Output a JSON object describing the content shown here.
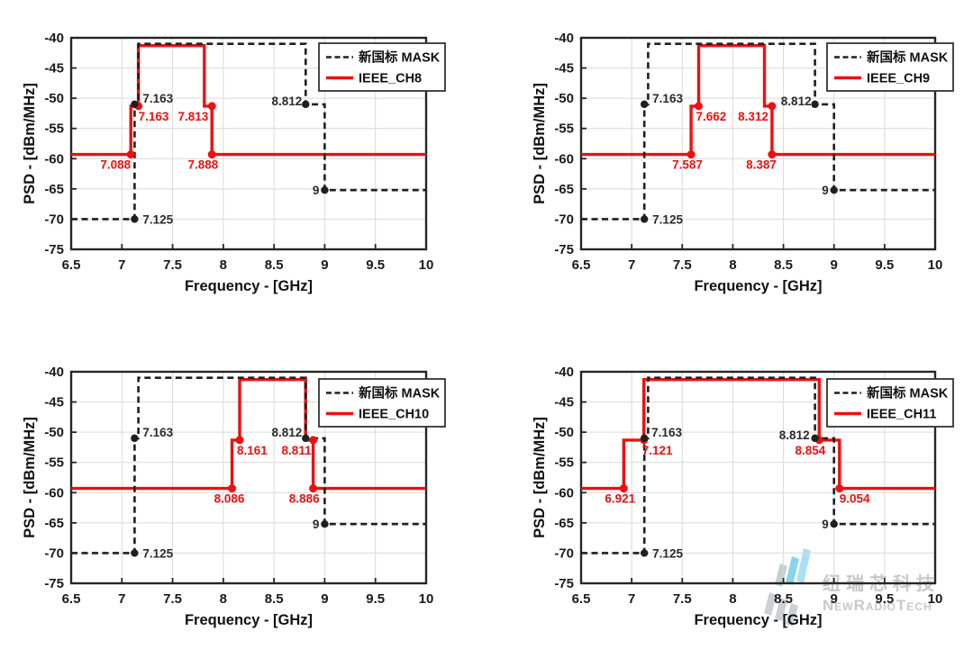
{
  "colors": {
    "mask_line": "#1f1f1f",
    "ieee_line": "#ee1010",
    "ieee_label": "#ee1010",
    "grid": "#d9d9d9",
    "frame": "#262626",
    "legend_border": "#333333",
    "watermark_text": "#c6c6c6",
    "watermark_cyan": "#7fd2ec",
    "watermark_cyan_light": "#a5e0f3",
    "watermark_gray": "#c9ced2",
    "watermark_gray_blue": "#c2ccd1"
  },
  "axes": {
    "x_label": "Frequency - [GHz]",
    "y_label": "PSD - [dBm/MHz]",
    "x_range": [
      6.5,
      10
    ],
    "y_range": [
      -75,
      -40
    ],
    "x_ticks": [
      "6.5",
      "7",
      "7.5",
      "8",
      "8.5",
      "9",
      "9.5",
      "10"
    ],
    "y_ticks": [
      "-40",
      "-45",
      "-50",
      "-55",
      "-60",
      "-65",
      "-70",
      "-75"
    ],
    "grid": true,
    "legend_position": "top-right"
  },
  "watermark": {
    "company_cn": "纽瑞芯科技",
    "company_en": "NewRadioTech"
  },
  "chart_data": [
    {
      "type": "line",
      "name": "IEEE_CH8",
      "series": [
        {
          "name": "新国标 MASK",
          "style": "dashed",
          "color_key": "mask_line",
          "points": [
            [
              6.5,
              -70
            ],
            [
              7.125,
              -70
            ],
            [
              7.125,
              -51
            ],
            [
              7.163,
              -51
            ],
            [
              7.163,
              -41
            ],
            [
              8.812,
              -41
            ],
            [
              8.812,
              -51
            ],
            [
              9,
              -51
            ],
            [
              9,
              -65.2
            ],
            [
              10,
              -65.2
            ]
          ],
          "markers": [
            {
              "label": "7.163",
              "x": 7.125,
              "y": -51,
              "anchor": "start",
              "dx": 9,
              "dy": -2
            },
            {
              "label": "8.812",
              "x": 8.812,
              "y": -51,
              "anchor": "end",
              "dx": -4,
              "dy": 1
            },
            {
              "label": "9",
              "x": 9,
              "y": -65.2,
              "anchor": "end",
              "dx": -6,
              "dy": 5
            },
            {
              "label": "7.125",
              "x": 7.125,
              "y": -70,
              "anchor": "start",
              "dx": 9,
              "dy": 5
            }
          ]
        },
        {
          "name": "IEEE_CH8",
          "style": "solid",
          "color_key": "ieee_line",
          "points": [
            [
              6.5,
              -59.3
            ],
            [
              7.088,
              -59.3
            ],
            [
              7.088,
              -51.3
            ],
            [
              7.163,
              -51.3
            ],
            [
              7.163,
              -41.3
            ],
            [
              7.813,
              -41.3
            ],
            [
              7.813,
              -51.3
            ],
            [
              7.888,
              -51.3
            ],
            [
              7.888,
              -59.3
            ],
            [
              10,
              -59.3
            ]
          ],
          "markers": [
            {
              "label": "7.088",
              "x": 7.088,
              "y": -59.3,
              "anchor": "end",
              "dx": 0,
              "dy": 16
            },
            {
              "label": "7.163",
              "x": 7.163,
              "y": -51.3,
              "anchor": "start",
              "dx": 0,
              "dy": 16
            },
            {
              "label": "7.813",
              "x": 7.888,
              "y": -51.3,
              "anchor": "end",
              "dx": -4,
              "dy": 16
            },
            {
              "label": "7.888",
              "x": 7.888,
              "y": -59.3,
              "anchor": "end",
              "dx": 7,
              "dy": 16
            }
          ]
        }
      ]
    },
    {
      "type": "line",
      "name": "IEEE_CH9",
      "series": [
        {
          "name": "新国标 MASK",
          "style": "dashed",
          "color_key": "mask_line",
          "points": [
            [
              6.5,
              -70
            ],
            [
              7.125,
              -70
            ],
            [
              7.125,
              -51
            ],
            [
              7.163,
              -51
            ],
            [
              7.163,
              -41
            ],
            [
              8.812,
              -41
            ],
            [
              8.812,
              -51
            ],
            [
              9,
              -51
            ],
            [
              9,
              -65.2
            ],
            [
              10,
              -65.2
            ]
          ],
          "markers": [
            {
              "label": "7.163",
              "x": 7.125,
              "y": -51,
              "anchor": "start",
              "dx": 9,
              "dy": -2
            },
            {
              "label": "8.812",
              "x": 8.812,
              "y": -51,
              "anchor": "end",
              "dx": -4,
              "dy": 1
            },
            {
              "label": "9",
              "x": 9,
              "y": -65.2,
              "anchor": "end",
              "dx": -6,
              "dy": 5
            },
            {
              "label": "7.125",
              "x": 7.125,
              "y": -70,
              "anchor": "start",
              "dx": 9,
              "dy": 5
            }
          ]
        },
        {
          "name": "IEEE_CH9",
          "style": "solid",
          "color_key": "ieee_line",
          "points": [
            [
              6.5,
              -59.3
            ],
            [
              7.587,
              -59.3
            ],
            [
              7.587,
              -51.3
            ],
            [
              7.662,
              -51.3
            ],
            [
              7.662,
              -41.3
            ],
            [
              8.312,
              -41.3
            ],
            [
              8.312,
              -51.3
            ],
            [
              8.387,
              -51.3
            ],
            [
              8.387,
              -59.3
            ],
            [
              10,
              -59.3
            ]
          ],
          "markers": [
            {
              "label": "7.587",
              "x": 7.587,
              "y": -59.3,
              "anchor": "middle",
              "dx": -4,
              "dy": 16
            },
            {
              "label": "7.662",
              "x": 7.662,
              "y": -51.3,
              "anchor": "start",
              "dx": -3,
              "dy": 16
            },
            {
              "label": "8.312",
              "x": 8.387,
              "y": -51.3,
              "anchor": "end",
              "dx": -4,
              "dy": 16
            },
            {
              "label": "8.387",
              "x": 8.387,
              "y": -59.3,
              "anchor": "end",
              "dx": 5,
              "dy": 16
            }
          ]
        }
      ]
    },
    {
      "type": "line",
      "name": "IEEE_CH10",
      "series": [
        {
          "name": "新国标 MASK",
          "style": "dashed",
          "color_key": "mask_line",
          "points": [
            [
              6.5,
              -70
            ],
            [
              7.125,
              -70
            ],
            [
              7.125,
              -51
            ],
            [
              7.163,
              -51
            ],
            [
              7.163,
              -41
            ],
            [
              8.812,
              -41
            ],
            [
              8.812,
              -51
            ],
            [
              9,
              -51
            ],
            [
              9,
              -65.2
            ],
            [
              10,
              -65.2
            ]
          ],
          "markers": [
            {
              "label": "7.163",
              "x": 7.125,
              "y": -51,
              "anchor": "start",
              "dx": 9,
              "dy": -2
            },
            {
              "label": "8.812",
              "x": 8.812,
              "y": -51,
              "anchor": "end",
              "dx": -4,
              "dy": -2
            },
            {
              "label": "9",
              "x": 9,
              "y": -65.2,
              "anchor": "end",
              "dx": -6,
              "dy": 5
            },
            {
              "label": "7.125",
              "x": 7.125,
              "y": -70,
              "anchor": "start",
              "dx": 9,
              "dy": 5
            }
          ]
        },
        {
          "name": "IEEE_CH10",
          "style": "solid",
          "color_key": "ieee_line",
          "points": [
            [
              6.5,
              -59.3
            ],
            [
              8.086,
              -59.3
            ],
            [
              8.086,
              -51.3
            ],
            [
              8.161,
              -51.3
            ],
            [
              8.161,
              -41.3
            ],
            [
              8.811,
              -41.3
            ],
            [
              8.811,
              -51.3
            ],
            [
              8.886,
              -51.3
            ],
            [
              8.886,
              -59.3
            ],
            [
              10,
              -59.3
            ]
          ],
          "markers": [
            {
              "label": "8.086",
              "x": 8.086,
              "y": -59.3,
              "anchor": "middle",
              "dx": -3,
              "dy": 16
            },
            {
              "label": "8.161",
              "x": 8.161,
              "y": -51.3,
              "anchor": "start",
              "dx": -3,
              "dy": 16
            },
            {
              "label": "8.811",
              "x": 8.886,
              "y": -51.3,
              "anchor": "end",
              "dx": -2,
              "dy": 16
            },
            {
              "label": "8.886",
              "x": 8.886,
              "y": -59.3,
              "anchor": "end",
              "dx": 7,
              "dy": 16
            }
          ]
        }
      ]
    },
    {
      "type": "line",
      "name": "IEEE_CH11",
      "series": [
        {
          "name": "新国标 MASK",
          "style": "dashed",
          "color_key": "mask_line",
          "points": [
            [
              6.5,
              -70
            ],
            [
              7.125,
              -70
            ],
            [
              7.125,
              -51
            ],
            [
              7.163,
              -51
            ],
            [
              7.163,
              -41
            ],
            [
              8.812,
              -41
            ],
            [
              8.812,
              -51
            ],
            [
              9,
              -51
            ],
            [
              9,
              -65.2
            ],
            [
              10,
              -65.2
            ]
          ],
          "markers": [
            {
              "label": "7.163",
              "x": 7.125,
              "y": -51,
              "anchor": "start",
              "dx": 8,
              "dy": -2
            },
            {
              "label": "8.812",
              "x": 8.812,
              "y": -51,
              "anchor": "end",
              "dx": -6,
              "dy": 1
            },
            {
              "label": "9",
              "x": 9,
              "y": -65.2,
              "anchor": "end",
              "dx": -6,
              "dy": 5
            },
            {
              "label": "7.125",
              "x": 7.125,
              "y": -70,
              "anchor": "start",
              "dx": 9,
              "dy": 5
            }
          ]
        },
        {
          "name": "IEEE_CH11",
          "style": "solid",
          "color_key": "ieee_line",
          "points": [
            [
              6.5,
              -59.3
            ],
            [
              6.921,
              -59.3
            ],
            [
              6.921,
              -51.3
            ],
            [
              7.121,
              -51.3
            ],
            [
              7.121,
              -41.3
            ],
            [
              8.854,
              -41.3
            ],
            [
              8.854,
              -51.3
            ],
            [
              9.054,
              -51.3
            ],
            [
              9.054,
              -59.3
            ],
            [
              10,
              -59.3
            ]
          ],
          "markers": [
            {
              "label": "6.921",
              "x": 6.921,
              "y": -59.3,
              "anchor": "middle",
              "dx": -4,
              "dy": 16
            },
            {
              "label": "7.121",
              "x": 7.121,
              "y": -51.3,
              "anchor": "start",
              "dx": -2,
              "dy": 16
            },
            {
              "label": "8.854",
              "x": 8.854,
              "y": -51.3,
              "anchor": "end",
              "dx": 7,
              "dy": 16
            },
            {
              "label": "9.054",
              "x": 9.054,
              "y": -59.3,
              "anchor": "start",
              "dx": 0,
              "dy": 16
            }
          ]
        }
      ]
    }
  ]
}
